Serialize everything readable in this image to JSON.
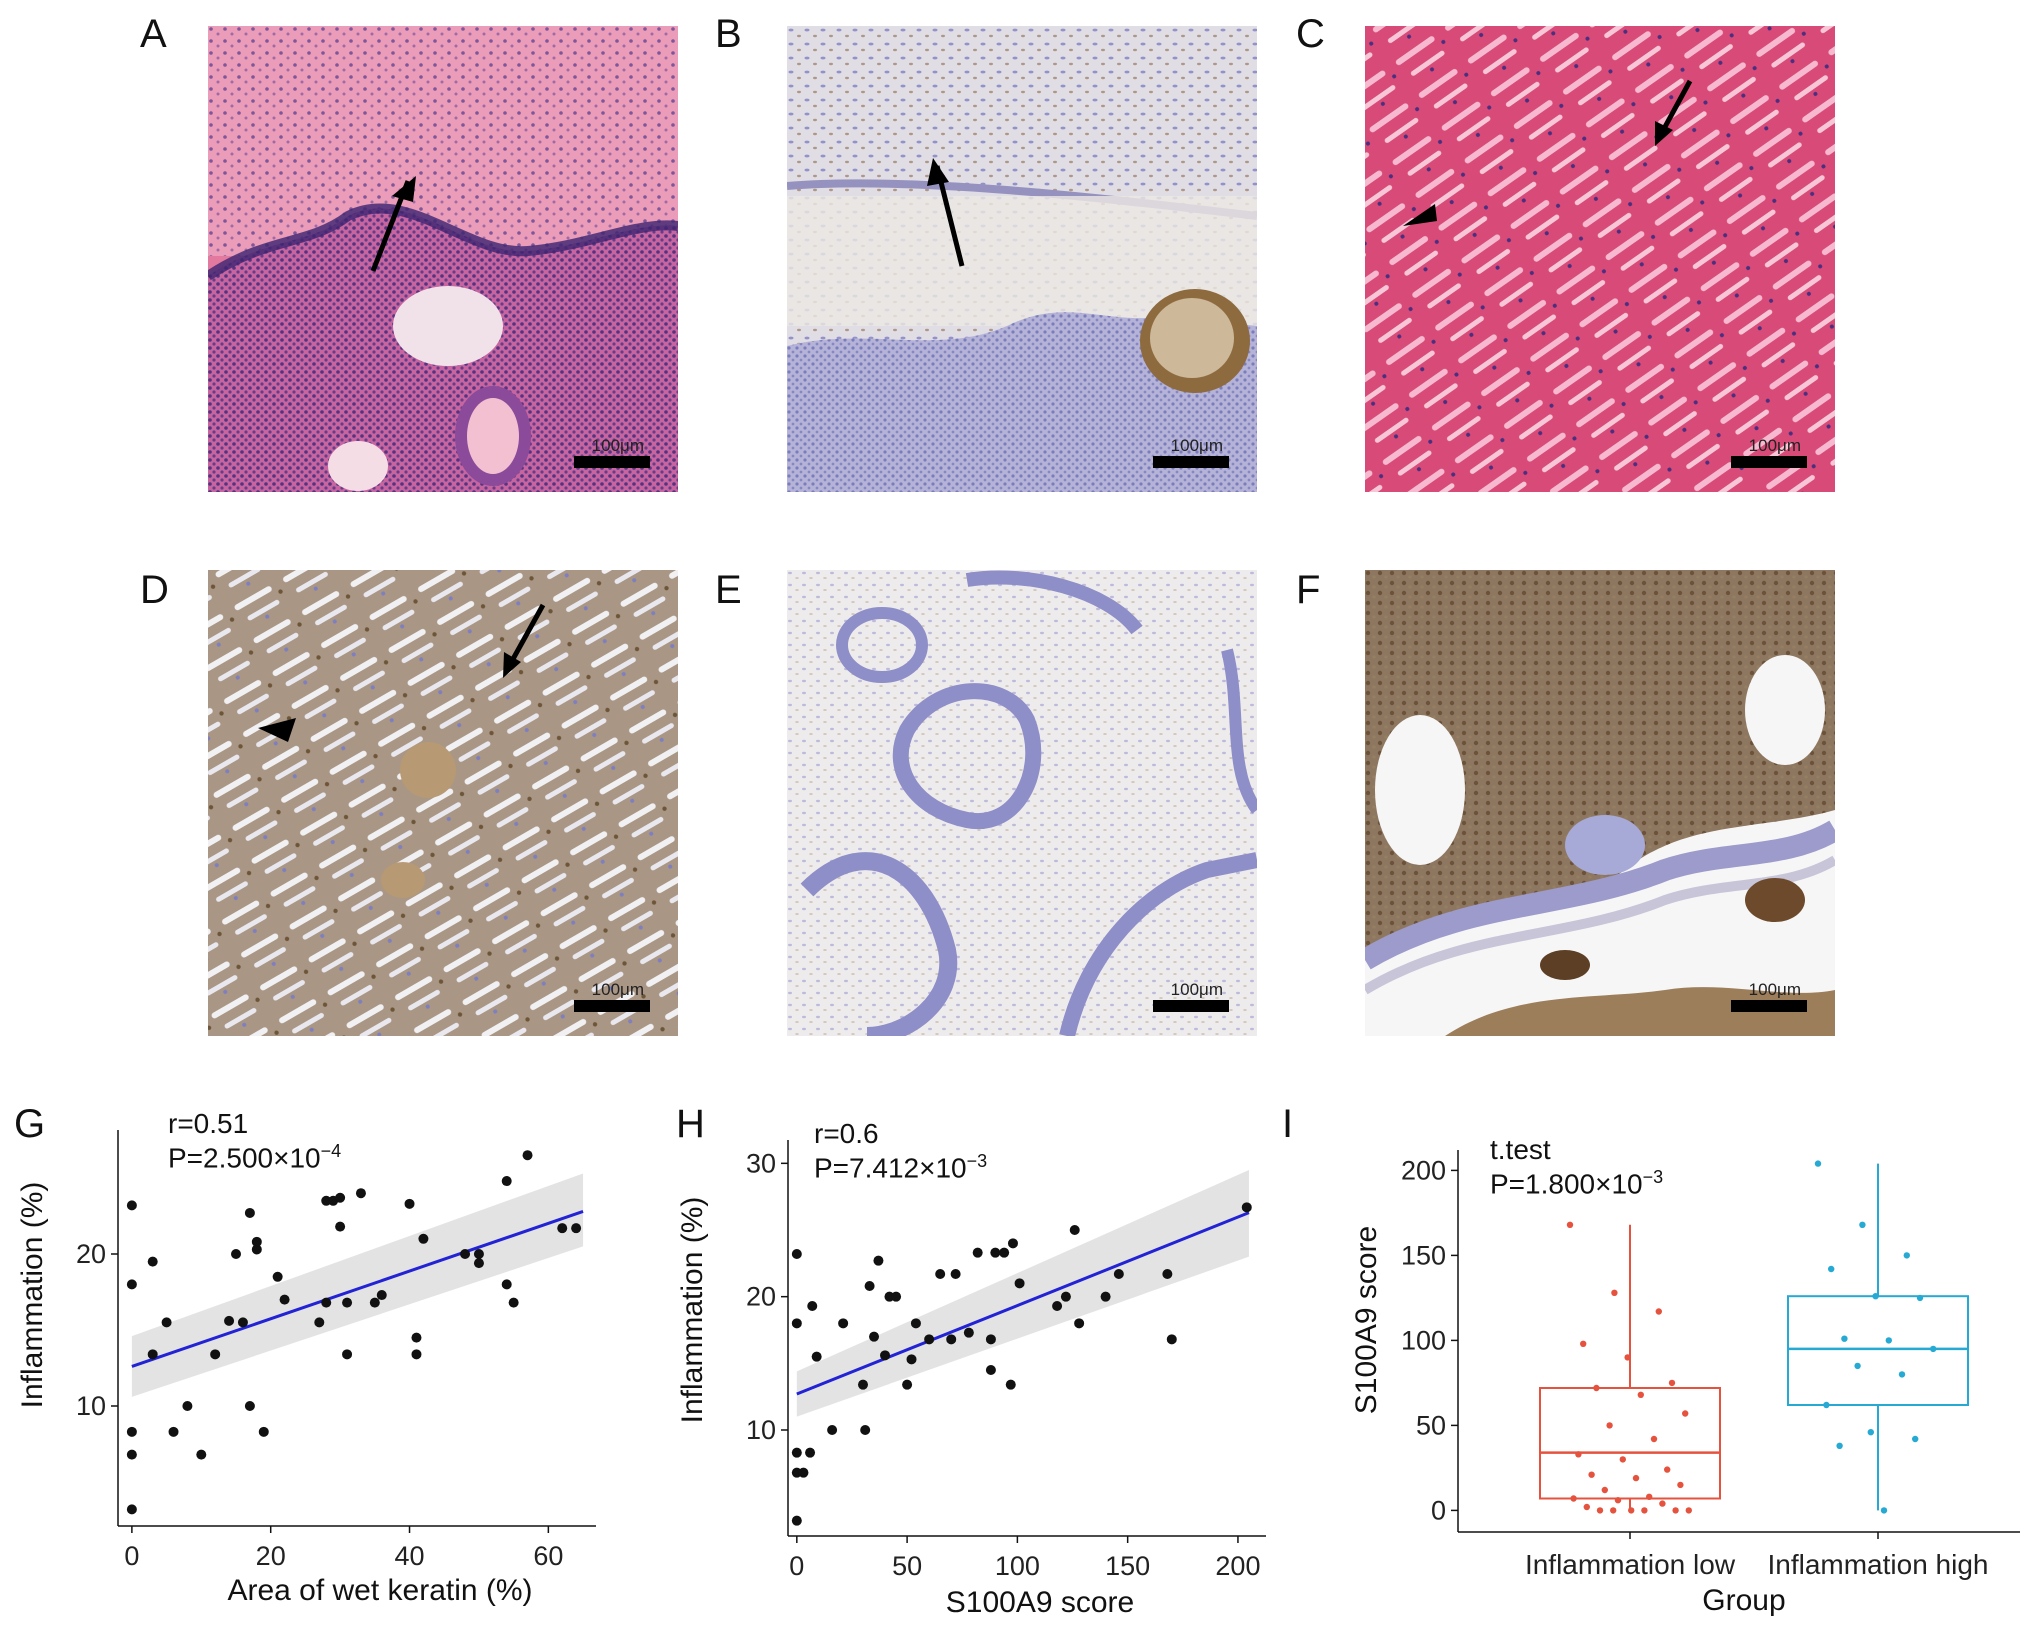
{
  "panels": {
    "A": {
      "letter": "A",
      "scale_label": "100μm"
    },
    "B": {
      "letter": "B",
      "scale_label": "100μm"
    },
    "C": {
      "letter": "C",
      "scale_label": "100μm"
    },
    "D": {
      "letter": "D",
      "scale_label": "100μm"
    },
    "E": {
      "letter": "E",
      "scale_label": "100μm"
    },
    "F": {
      "letter": "F",
      "scale_label": "100μm"
    },
    "G": {
      "letter": "G"
    },
    "H": {
      "letter": "H"
    },
    "I": {
      "letter": "I"
    }
  },
  "stain_colors": {
    "he_background": "#e27aa0",
    "he_nuclei": "#5a3f8f",
    "ihc_background": "#ded8d8",
    "ihc_brown": "#7a5a36",
    "ihc_blue": "#8e8ec8",
    "regression_line": "#2323d6",
    "low_group": "#e5533f",
    "high_group": "#26a9d3"
  },
  "chart_data": [
    {
      "type": "scatter",
      "panel": "G",
      "annotation_r": "r=0.51",
      "annotation_p_base": "P=2.500×10",
      "annotation_p_exp": "−4",
      "xlabel": "Area of wet keratin (%)",
      "ylabel": "Inflammation (%)",
      "xlim": [
        -2,
        66
      ],
      "ylim": [
        2.5,
        27.5
      ],
      "xticks": [
        "0",
        "20",
        "40",
        "60"
      ],
      "yticks": [
        "10",
        "20"
      ],
      "xtick_values": [
        0,
        20,
        40,
        60
      ],
      "ytick_values": [
        10,
        20
      ],
      "fit": {
        "x0": 0,
        "y0": 12.6,
        "x1": 65,
        "y1": 22.8,
        "ci_lo": [
          10.6,
          20.5
        ],
        "ci_hi": [
          14.6,
          25.3
        ]
      },
      "points": [
        [
          0,
          3.2
        ],
        [
          0,
          6.8
        ],
        [
          0,
          8.3
        ],
        [
          0,
          18
        ],
        [
          0,
          23.2
        ],
        [
          3,
          13.4
        ],
        [
          3,
          19.5
        ],
        [
          5,
          15.5
        ],
        [
          6,
          8.3
        ],
        [
          8,
          10
        ],
        [
          10,
          6.8
        ],
        [
          12,
          13.4
        ],
        [
          14,
          15.6
        ],
        [
          15,
          20
        ],
        [
          16,
          15.5
        ],
        [
          17,
          10
        ],
        [
          17,
          22.7
        ],
        [
          18,
          20.3
        ],
        [
          18,
          20.8
        ],
        [
          19,
          8.3
        ],
        [
          21,
          18.5
        ],
        [
          22,
          17
        ],
        [
          27,
          15.5
        ],
        [
          28,
          16.8
        ],
        [
          28,
          23.5
        ],
        [
          29,
          23.5
        ],
        [
          30,
          21.8
        ],
        [
          30,
          23.7
        ],
        [
          31,
          13.4
        ],
        [
          31,
          16.8
        ],
        [
          33,
          24
        ],
        [
          35,
          16.8
        ],
        [
          36,
          17.3
        ],
        [
          40,
          23.3
        ],
        [
          41,
          14.5
        ],
        [
          41,
          13.4
        ],
        [
          42,
          21
        ],
        [
          48,
          20
        ],
        [
          50,
          20
        ],
        [
          50,
          19.4
        ],
        [
          54,
          24.8
        ],
        [
          54,
          18
        ],
        [
          55,
          16.8
        ],
        [
          57,
          26.5
        ],
        [
          62,
          21.7
        ],
        [
          64,
          21.7
        ]
      ]
    },
    {
      "type": "scatter",
      "panel": "H",
      "annotation_r": "r=0.6",
      "annotation_p_base": "P=7.412×10",
      "annotation_p_exp": "−3",
      "xlabel": "S100A9 score",
      "ylabel": "Inflammation (%)",
      "xlim": [
        -4,
        210
      ],
      "ylim": [
        2.5,
        31
      ],
      "xticks": [
        "0",
        "50",
        "100",
        "150",
        "200"
      ],
      "yticks": [
        "10",
        "20",
        "30"
      ],
      "xtick_values": [
        0,
        50,
        100,
        150,
        200
      ],
      "ytick_values": [
        10,
        20,
        30
      ],
      "fit": {
        "x0": 0,
        "y0": 12.7,
        "x1": 205,
        "y1": 26.3,
        "ci_lo": [
          11.0,
          23.0
        ],
        "ci_hi": [
          14.4,
          29.5
        ]
      },
      "points": [
        [
          0,
          3.2
        ],
        [
          0,
          6.8
        ],
        [
          0,
          8.3
        ],
        [
          0,
          18
        ],
        [
          0,
          23.2
        ],
        [
          3,
          6.8
        ],
        [
          6,
          8.3
        ],
        [
          7,
          19.3
        ],
        [
          9,
          15.5
        ],
        [
          16,
          10
        ],
        [
          21,
          18
        ],
        [
          30,
          13.4
        ],
        [
          31,
          10
        ],
        [
          33,
          20.8
        ],
        [
          35,
          17
        ],
        [
          37,
          22.7
        ],
        [
          40,
          15.6
        ],
        [
          42,
          20
        ],
        [
          45,
          20
        ],
        [
          50,
          13.4
        ],
        [
          52,
          15.3
        ],
        [
          54,
          18
        ],
        [
          60,
          16.8
        ],
        [
          65,
          21.7
        ],
        [
          70,
          16.8
        ],
        [
          72,
          21.7
        ],
        [
          78,
          17.3
        ],
        [
          82,
          23.3
        ],
        [
          88,
          14.5
        ],
        [
          88,
          16.8
        ],
        [
          90,
          23.3
        ],
        [
          94,
          23.3
        ],
        [
          97,
          13.4
        ],
        [
          98,
          24
        ],
        [
          101,
          21
        ],
        [
          118,
          19.3
        ],
        [
          122,
          20
        ],
        [
          126,
          25
        ],
        [
          128,
          18
        ],
        [
          140,
          20
        ],
        [
          146,
          21.7
        ],
        [
          168,
          21.7
        ],
        [
          170,
          16.8
        ],
        [
          204,
          26.7
        ]
      ]
    },
    {
      "type": "box",
      "panel": "I",
      "annotation_test": "t.test",
      "annotation_p_base": "P=1.800×10",
      "annotation_p_exp": "−3",
      "xlabel": "Group",
      "ylabel": "S100A9 score",
      "ylim": [
        -8,
        212
      ],
      "yticks": [
        "0",
        "50",
        "100",
        "150",
        "200"
      ],
      "ytick_values": [
        0,
        50,
        100,
        150,
        200
      ],
      "categories": [
        "Inflammation low",
        "Inflammation high"
      ],
      "series": [
        {
          "name": "Inflammation low",
          "box": {
            "whisker_low": 0,
            "q1": 7,
            "median": 34,
            "q3": 72,
            "whisker_high": 168
          },
          "points": [
            168,
            128,
            117,
            98,
            90,
            75,
            72,
            68,
            57,
            50,
            42,
            33,
            30,
            24,
            21,
            19,
            15,
            12,
            8,
            7,
            6,
            4,
            2,
            0,
            0,
            0,
            0,
            0,
            0
          ]
        },
        {
          "name": "Inflammation high",
          "box": {
            "whisker_low": 0,
            "q1": 62,
            "median": 95,
            "q3": 126,
            "whisker_high": 204
          },
          "points": [
            204,
            168,
            150,
            142,
            126,
            125,
            101,
            100,
            95,
            85,
            80,
            62,
            46,
            42,
            38,
            0
          ]
        }
      ]
    }
  ]
}
